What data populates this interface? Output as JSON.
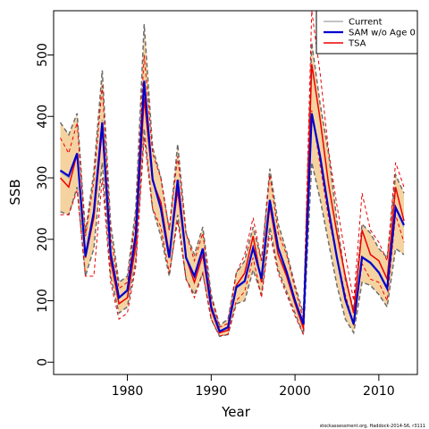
{
  "chart_data": {
    "type": "line",
    "xlabel": "Year",
    "ylabel": "SSB",
    "xlim": [
      1971.2,
      2014.6
    ],
    "ylim": [
      -20,
      572
    ],
    "x_ticks": [
      1980,
      1990,
      2000,
      2010
    ],
    "y_ticks": [
      0,
      100,
      200,
      300,
      400,
      500
    ],
    "legend_position": "top-right",
    "caption": "stockassessment.org, Haddock-2014-S6, r3111",
    "colors": {
      "current": "#b0b0b0",
      "current_ci": "#6e6e6e",
      "band": "#f5d3a0",
      "sam": "#0000cc",
      "tsa": "#ee0000"
    },
    "x": [
      1972,
      1973,
      1974,
      1975,
      1976,
      1977,
      1978,
      1979,
      1980,
      1981,
      1982,
      1983,
      1984,
      1985,
      1986,
      1987,
      1988,
      1989,
      1990,
      1991,
      1992,
      1993,
      1994,
      1995,
      1996,
      1997,
      1998,
      1999,
      2000,
      2001,
      2002,
      2003,
      2004,
      2005,
      2006,
      2007,
      2008,
      2009,
      2010,
      2011,
      2012,
      2013
    ],
    "series": [
      {
        "name": "Current",
        "style": "current",
        "values": [
          310,
          300,
          340,
          170,
          240,
          395,
          175,
          105,
          115,
          205,
          455,
          300,
          250,
          170,
          295,
          170,
          140,
          185,
          90,
          50,
          55,
          120,
          130,
          185,
          135,
          265,
          185,
          145,
          100,
          60,
          405,
          330,
          250,
          170,
          100,
          60,
          170,
          160,
          145,
          120,
          250,
          220
        ],
        "upper": [
          390,
          370,
          405,
          210,
          310,
          475,
          225,
          130,
          140,
          250,
          550,
          350,
          300,
          215,
          355,
          210,
          175,
          220,
          110,
          60,
          70,
          145,
          165,
          220,
          165,
          315,
          225,
          180,
          125,
          80,
          520,
          420,
          340,
          230,
          135,
          85,
          225,
          210,
          185,
          170,
          305,
          275
        ],
        "lower": [
          245,
          240,
          285,
          140,
          185,
          325,
          140,
          80,
          90,
          165,
          380,
          250,
          205,
          140,
          240,
          135,
          110,
          145,
          70,
          42,
          45,
          95,
          100,
          150,
          110,
          220,
          150,
          115,
          80,
          45,
          325,
          265,
          195,
          125,
          70,
          48,
          130,
          125,
          110,
          90,
          185,
          175
        ]
      },
      {
        "name": "SAM w/o Age 0",
        "style": "sam",
        "values": [
          312,
          303,
          340,
          172,
          245,
          390,
          177,
          105,
          117,
          208,
          458,
          298,
          250,
          170,
          297,
          170,
          140,
          185,
          90,
          50,
          57,
          122,
          132,
          186,
          136,
          264,
          186,
          147,
          100,
          62,
          405,
          335,
          248,
          170,
          102,
          62,
          171,
          162,
          146,
          120,
          252,
          223
        ]
      },
      {
        "name": "TSA",
        "style": "tsa",
        "values": [
          300,
          285,
          340,
          170,
          235,
          380,
          165,
          95,
          105,
          190,
          430,
          295,
          260,
          175,
          280,
          170,
          130,
          175,
          85,
          48,
          52,
          125,
          145,
          205,
          130,
          255,
          175,
          140,
          95,
          55,
          485,
          395,
          290,
          210,
          140,
          80,
          215,
          175,
          165,
          135,
          285,
          230
        ],
        "upper": [
          365,
          340,
          390,
          205,
          295,
          450,
          205,
          120,
          130,
          235,
          500,
          340,
          300,
          215,
          335,
          210,
          165,
          210,
          105,
          57,
          63,
          145,
          175,
          235,
          165,
          305,
          210,
          175,
          120,
          70,
          572,
          470,
          345,
          255,
          175,
          100,
          275,
          215,
          195,
          165,
          325,
          285
        ],
        "lower": [
          240,
          240,
          280,
          140,
          140,
          300,
          130,
          70,
          80,
          155,
          365,
          250,
          220,
          145,
          230,
          135,
          105,
          145,
          70,
          43,
          45,
          100,
          115,
          170,
          105,
          210,
          145,
          110,
          75,
          45,
          410,
          320,
          235,
          170,
          110,
          60,
          160,
          135,
          130,
          100,
          240,
          195
        ]
      }
    ]
  }
}
